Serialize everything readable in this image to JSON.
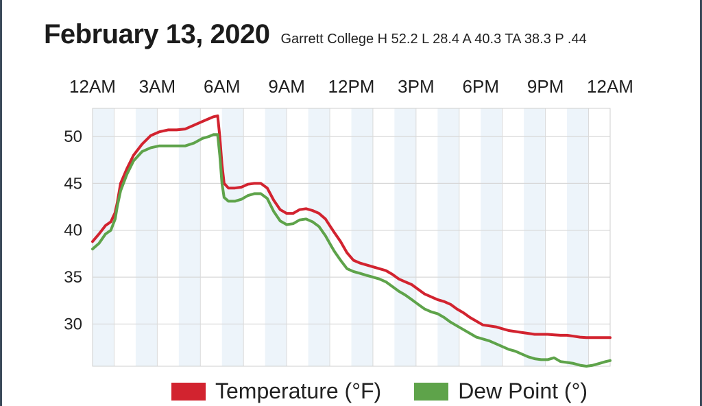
{
  "header": {
    "title": "February 13, 2020",
    "subtitle": "Garrett College H 52.2 L 28.4 A 40.3 TA 38.3 P .44"
  },
  "colors": {
    "temperature": "#d2232f",
    "dew_point": "#5ea34a",
    "band": "#edf4fa",
    "grid": "#d8d8d8"
  },
  "chart_data": {
    "type": "line",
    "x_tick_labels": [
      "12AM",
      "3AM",
      "6AM",
      "9AM",
      "12PM",
      "3PM",
      "6PM",
      "9PM",
      "12AM"
    ],
    "x_unit": "hour of day",
    "xlim": [
      0,
      24
    ],
    "ylim": [
      25.5,
      53
    ],
    "y_ticks": [
      30,
      35,
      40,
      45,
      50
    ],
    "grid": true,
    "legend_placement": "bottom",
    "series": [
      {
        "name": "Temperature (°F)",
        "color": "#d2232f",
        "x": [
          0,
          0.3,
          0.6,
          0.85,
          1.05,
          1.15,
          1.3,
          1.6,
          1.9,
          2.3,
          2.7,
          3.1,
          3.5,
          3.9,
          4.3,
          4.7,
          5.1,
          5.4,
          5.6,
          5.8,
          5.9,
          6.0,
          6.1,
          6.3,
          6.6,
          6.9,
          7.2,
          7.5,
          7.8,
          8.1,
          8.4,
          8.7,
          9.0,
          9.3,
          9.6,
          9.9,
          10.2,
          10.5,
          10.8,
          11.0,
          11.2,
          11.5,
          11.8,
          12.1,
          12.4,
          12.7,
          13.0,
          13.3,
          13.6,
          13.9,
          14.2,
          14.5,
          14.8,
          15.1,
          15.4,
          15.7,
          16.0,
          16.3,
          16.6,
          16.9,
          17.2,
          17.5,
          17.8,
          18.1,
          18.4,
          18.7,
          19.0,
          19.3,
          19.6,
          19.9,
          20.2,
          20.5,
          20.8,
          21.1,
          21.4,
          21.7,
          22.0,
          22.3,
          22.6,
          22.9,
          23.2,
          23.5,
          23.8,
          24.0
        ],
        "y": [
          38.8,
          39.6,
          40.5,
          40.9,
          41.9,
          43.0,
          45.0,
          46.6,
          48.0,
          49.2,
          50.1,
          50.5,
          50.7,
          50.7,
          50.8,
          51.2,
          51.6,
          51.9,
          52.1,
          52.2,
          50.0,
          47.0,
          45.0,
          44.5,
          44.5,
          44.6,
          44.9,
          45.0,
          45.0,
          44.5,
          43.2,
          42.2,
          41.8,
          41.8,
          42.2,
          42.3,
          42.1,
          41.8,
          41.2,
          40.5,
          39.8,
          38.8,
          37.6,
          36.8,
          36.5,
          36.3,
          36.1,
          35.9,
          35.7,
          35.3,
          34.8,
          34.5,
          34.2,
          33.7,
          33.2,
          32.9,
          32.6,
          32.4,
          32.1,
          31.6,
          31.2,
          30.7,
          30.3,
          29.9,
          29.8,
          29.7,
          29.5,
          29.3,
          29.2,
          29.1,
          29.0,
          28.9,
          28.9,
          28.9,
          28.85,
          28.8,
          28.8,
          28.7,
          28.6,
          28.55,
          28.55,
          28.55,
          28.55,
          28.55
        ]
      },
      {
        "name": "Dew Point (°)",
        "color": "#5ea34a",
        "x": [
          0,
          0.3,
          0.6,
          0.85,
          1.05,
          1.15,
          1.3,
          1.6,
          1.9,
          2.3,
          2.7,
          3.1,
          3.5,
          3.9,
          4.3,
          4.7,
          5.1,
          5.4,
          5.6,
          5.8,
          5.9,
          6.0,
          6.1,
          6.3,
          6.6,
          6.9,
          7.2,
          7.5,
          7.8,
          8.1,
          8.4,
          8.7,
          9.0,
          9.3,
          9.6,
          9.9,
          10.2,
          10.5,
          10.8,
          11.0,
          11.2,
          11.5,
          11.8,
          12.1,
          12.4,
          12.7,
          13.0,
          13.3,
          13.6,
          13.9,
          14.2,
          14.5,
          14.8,
          15.1,
          15.4,
          15.7,
          16.0,
          16.3,
          16.6,
          16.9,
          17.2,
          17.5,
          17.8,
          18.1,
          18.4,
          18.7,
          19.0,
          19.3,
          19.6,
          19.9,
          20.2,
          20.5,
          20.8,
          21.1,
          21.4,
          21.7,
          22.0,
          22.3,
          22.6,
          22.9,
          23.2,
          23.5,
          23.8,
          24.0
        ],
        "y": [
          38.0,
          38.6,
          39.6,
          40.0,
          41.2,
          42.6,
          44.2,
          46.0,
          47.4,
          48.4,
          48.8,
          49.0,
          49.0,
          49.0,
          49.0,
          49.3,
          49.8,
          50.0,
          50.2,
          50.2,
          48.0,
          45.0,
          43.5,
          43.1,
          43.1,
          43.3,
          43.7,
          43.9,
          43.9,
          43.4,
          42.0,
          41.0,
          40.6,
          40.7,
          41.1,
          41.2,
          40.9,
          40.4,
          39.4,
          38.6,
          37.8,
          36.8,
          35.9,
          35.6,
          35.4,
          35.2,
          35.0,
          34.8,
          34.5,
          34.0,
          33.5,
          33.1,
          32.6,
          32.1,
          31.6,
          31.3,
          31.1,
          30.7,
          30.2,
          29.8,
          29.4,
          29.0,
          28.6,
          28.4,
          28.2,
          27.9,
          27.6,
          27.3,
          27.1,
          26.8,
          26.5,
          26.3,
          26.2,
          26.2,
          26.4,
          26.0,
          25.9,
          25.8,
          25.6,
          25.5,
          25.6,
          25.8,
          26.0,
          26.1
        ]
      }
    ]
  }
}
